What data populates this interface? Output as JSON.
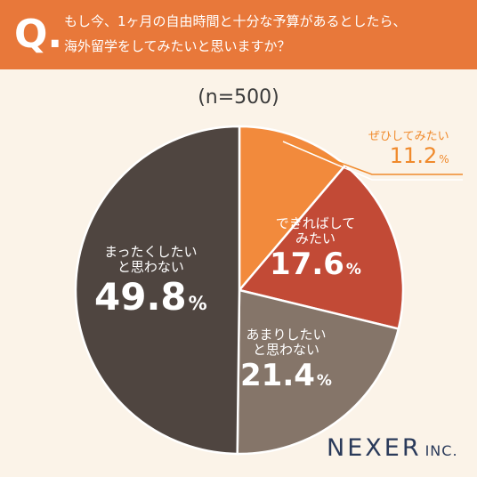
{
  "question": {
    "badge": "Q.",
    "line1": "もし今、1ヶ月の自由時間と十分な予算があるとしたら、",
    "line2": "海外留学をしてみたいと思いますか？"
  },
  "sample_label": "(n=500)",
  "logo": {
    "main": "NEXER",
    "suffix": "INC."
  },
  "colors": {
    "header_bg": "#e8783a",
    "page_bg": "#fbf3e8"
  },
  "chart_data": {
    "type": "pie",
    "title": "",
    "unit": "%",
    "start_angle_deg": 0,
    "direction": "clockwise",
    "slices": [
      {
        "label": "ぜひしてみたい",
        "value": 11.2,
        "value_text": "11.2",
        "color": "#f28a3c"
      },
      {
        "label": "できればしてみたい",
        "value": 17.6,
        "value_text": "17.6",
        "color": "#c24a36"
      },
      {
        "label": "あまりしたいと思わない",
        "value": 21.4,
        "value_text": "21.4",
        "color": "#857569"
      },
      {
        "label": "まったくしたいと思わない",
        "value": 49.8,
        "value_text": "49.8",
        "color": "#4f4540"
      }
    ]
  }
}
